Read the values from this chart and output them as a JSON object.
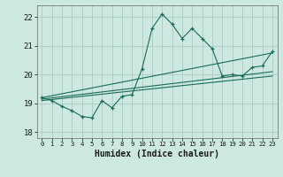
{
  "xlabel": "Humidex (Indice chaleur)",
  "bg_color": "#cce8e0",
  "grid_color": "#aaccC4",
  "line_color": "#1a6b5a",
  "xlim": [
    -0.5,
    23.5
  ],
  "ylim": [
    17.8,
    22.4
  ],
  "yticks": [
    18,
    19,
    20,
    21,
    22
  ],
  "xticks": [
    0,
    1,
    2,
    3,
    4,
    5,
    6,
    7,
    8,
    9,
    10,
    11,
    12,
    13,
    14,
    15,
    16,
    17,
    18,
    19,
    20,
    21,
    22,
    23
  ],
  "main_data_y": [
    19.2,
    19.1,
    18.9,
    18.75,
    18.55,
    18.5,
    19.1,
    18.85,
    19.25,
    19.3,
    20.2,
    21.6,
    22.1,
    21.75,
    21.25,
    21.6,
    21.25,
    20.9,
    19.95,
    20.0,
    19.95,
    20.25,
    20.3,
    20.8
  ],
  "trend_lines": [
    {
      "x": [
        0,
        23
      ],
      "y": [
        19.1,
        19.95
      ]
    },
    {
      "x": [
        0,
        23
      ],
      "y": [
        19.15,
        20.1
      ]
    },
    {
      "x": [
        0,
        23
      ],
      "y": [
        19.2,
        20.75
      ]
    }
  ]
}
